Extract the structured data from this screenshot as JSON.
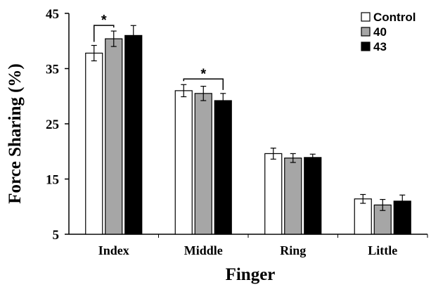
{
  "chart_data": {
    "type": "bar",
    "xlabel": "Finger",
    "ylabel": "Force Sharing (%)",
    "ylim": [
      5,
      45
    ],
    "yticks": [
      5,
      15,
      25,
      35,
      45
    ],
    "categories": [
      "Index",
      "Middle",
      "Ring",
      "Little"
    ],
    "series": [
      {
        "name": "Control",
        "color": "#ffffff",
        "values": [
          37.8,
          31.0,
          19.6,
          11.4
        ],
        "errors": [
          1.4,
          1.1,
          1.0,
          0.8
        ]
      },
      {
        "name": "40",
        "color": "#a6a6a6",
        "values": [
          40.4,
          30.5,
          18.8,
          10.3
        ],
        "errors": [
          1.4,
          1.3,
          0.8,
          1.0
        ]
      },
      {
        "name": "43",
        "color": "#000000",
        "values": [
          41.0,
          29.2,
          18.9,
          11.0
        ],
        "errors": [
          1.8,
          1.3,
          0.6,
          1.1
        ]
      }
    ],
    "annotations": [
      {
        "text": "*",
        "category": "Index",
        "from_series": 0,
        "to_series": 1
      },
      {
        "text": "*",
        "category": "Middle",
        "from_series": 0,
        "to_series": 2
      }
    ],
    "legend_position": "top-right",
    "grid": false
  }
}
